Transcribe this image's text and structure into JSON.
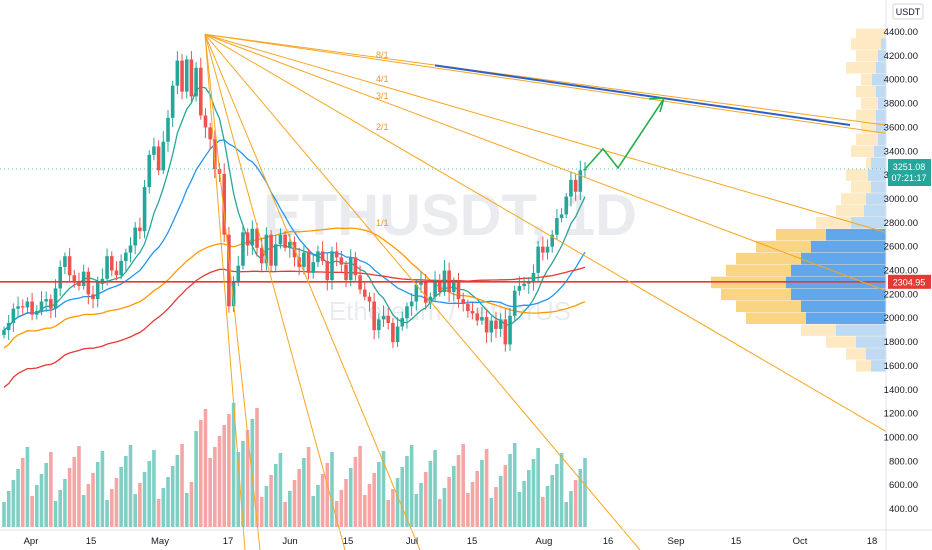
{
  "chart_data": {
    "type": "candlestick",
    "symbol_watermark": "ETHUSDT, 1D",
    "watermark_sub": "Ethereum / TetherUS",
    "currency_badge": "USDT",
    "y_axis_ticks": [
      400,
      600,
      800,
      1000,
      1200,
      1400,
      1600,
      1800,
      2000,
      2200,
      2400,
      2600,
      2800,
      3000,
      3200,
      3400,
      3600,
      3800,
      4000,
      4200,
      4400
    ],
    "y_axis_tick_labels": [
      "400.00",
      "600.00",
      "800.00",
      "1000.00",
      "1200.00",
      "1400.00",
      "1600.00",
      "1800.00",
      "2000.00",
      "2200.00",
      "2400.00",
      "2600.00",
      "2800.00",
      "3000.00",
      "3200.00",
      "3400.00",
      "3600.00",
      "3800.00",
      "4000.00",
      "4200.00",
      "4400.00"
    ],
    "x_axis_labels": [
      "Apr",
      "15",
      "May",
      "17",
      "Jun",
      "15",
      "Jul",
      "15",
      "Aug",
      "16",
      "Sep",
      "15",
      "Oct",
      "18"
    ],
    "last_price": 3251.08,
    "last_price_label": "3251.08",
    "countdown_label": "07:21:17",
    "horizontal_level": 2304.95,
    "horizontal_level_label": "2304.95",
    "fan_labels": [
      "8/1",
      "4/1",
      "3/1",
      "2/1",
      "1/1"
    ],
    "fan_origin": {
      "date": "May 12",
      "price": 4380
    },
    "ohlc_daily_close_estimate": [
      1900,
      1960,
      2080,
      2100,
      2090,
      2140,
      2030,
      2060,
      2140,
      2160,
      2080,
      2250,
      2430,
      2520,
      2360,
      2300,
      2270,
      2390,
      2200,
      2160,
      2300,
      2330,
      2520,
      2400,
      2360,
      2480,
      2550,
      2610,
      2760,
      2730,
      3100,
      3370,
      3440,
      3240,
      3480,
      3680,
      3950,
      4160,
      3900,
      4170,
      3860,
      4100,
      3700,
      3600,
      3500,
      3250,
      3210,
      2700,
      2100,
      2310,
      2440,
      2720,
      2610,
      2750,
      2590,
      2460,
      2700,
      2440,
      2620,
      2700,
      2590,
      2640,
      2510,
      2430,
      2550,
      2380,
      2470,
      2560,
      2480,
      2320,
      2560,
      2510,
      2450,
      2320,
      2510,
      2360,
      2240,
      2180,
      2140,
      1900,
      1990,
      2020,
      1960,
      1800,
      1930,
      2000,
      2100,
      2140,
      2280,
      2310,
      2130,
      2180,
      2320,
      2220,
      2400,
      2220,
      2300,
      2160,
      2120,
      2060,
      2040,
      1980,
      2010,
      1880,
      1980,
      1910,
      1990,
      1780,
      2020,
      2230,
      2270,
      2290,
      2310,
      2380,
      2600,
      2550,
      2600,
      2700,
      2840,
      2870,
      3020,
      3160,
      3060,
      3240,
      3251
    ],
    "moving_averages": [
      {
        "color": "#26a69a"
      },
      {
        "color": "#2196f3"
      },
      {
        "color": "#ff9800"
      },
      {
        "color": "#e53935"
      }
    ],
    "projection_arrow": [
      3250,
      3420,
      3260,
      3830
    ],
    "trendline_blue": {
      "from": 4120,
      "to": 3620
    },
    "volume_profile": "horizontal volume-by-price histogram on right side",
    "colors": {
      "up": "#26a69a",
      "down": "#ef5350",
      "fan": "#f6a623",
      "level": "#e53935",
      "trend": "#2e5ec9",
      "arrow": "#22b14c"
    }
  }
}
